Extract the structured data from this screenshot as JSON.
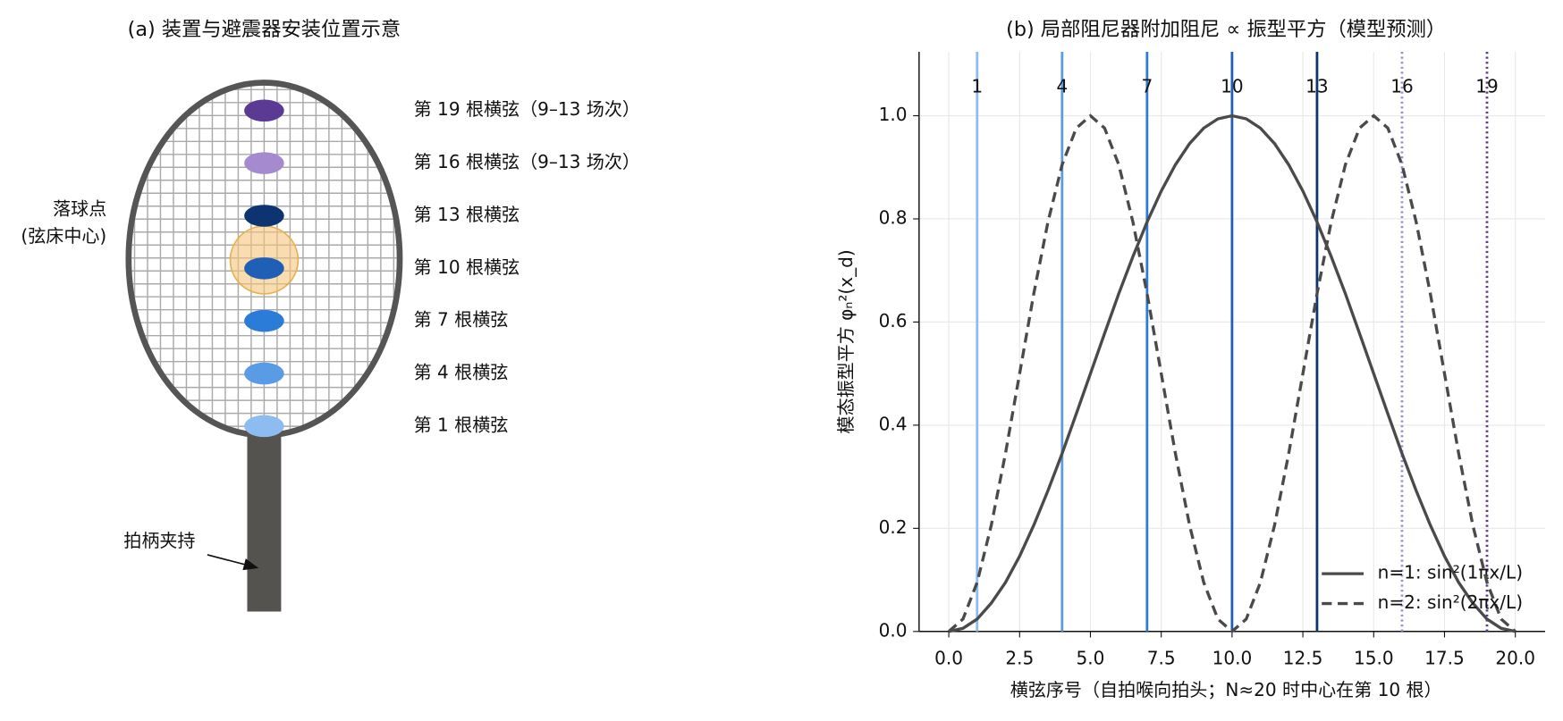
{
  "panel_a": {
    "title": "(a) 装置与避震器安装位置示意",
    "strings": [
      {
        "label": "第 19 根横弦（9–13 场次）",
        "color": "#5b3a94"
      },
      {
        "label": "第 16 根横弦（9–13 场次）",
        "color": "#a58ad0"
      },
      {
        "label": "第 13 根横弦",
        "color": "#0d3470"
      },
      {
        "label": "第 10 根横弦",
        "color": "#1f5fb5"
      },
      {
        "label": "第 7 根横弦",
        "color": "#2b7bd9"
      },
      {
        "label": "第 4 根横弦",
        "color": "#5a9be6"
      },
      {
        "label": "第 1 根横弦",
        "color": "#8cbcf0"
      }
    ],
    "impact_label": [
      "落球点",
      "(弦床中心)"
    ],
    "impact_color": "#f5c57a",
    "clamp_label": "拍柄夹持"
  },
  "chart_data": {
    "type": "line",
    "title": "(b) 局部阻尼器附加阻尼 ∝ 振型平方（模型预测）",
    "xlabel": "横弦序号（自拍喉向拍头；N≈20 时中心在第 10 根）",
    "ylabel": "模态振型平方 φₙ²(x_d)",
    "x": [
      0,
      0.5,
      1,
      1.5,
      2,
      2.5,
      3,
      3.5,
      4,
      4.5,
      5,
      5.5,
      6,
      6.5,
      7,
      7.5,
      8,
      8.5,
      9,
      9.5,
      10,
      10.5,
      11,
      11.5,
      12,
      12.5,
      13,
      13.5,
      14,
      14.5,
      15,
      15.5,
      16,
      16.5,
      17,
      17.5,
      18,
      18.5,
      19,
      19.5,
      20
    ],
    "series": [
      {
        "name": "n=1: sin²(1πx/L)",
        "color": "#4a4a4a",
        "linestyle": "solid",
        "values": [
          0,
          0.006,
          0.024,
          0.055,
          0.095,
          0.146,
          0.206,
          0.273,
          0.345,
          0.422,
          0.5,
          0.578,
          0.655,
          0.727,
          0.794,
          0.854,
          0.905,
          0.946,
          0.976,
          0.994,
          1,
          0.994,
          0.976,
          0.946,
          0.905,
          0.854,
          0.794,
          0.727,
          0.655,
          0.578,
          0.5,
          0.422,
          0.345,
          0.273,
          0.206,
          0.146,
          0.095,
          0.055,
          0.024,
          0.006,
          0
        ]
      },
      {
        "name": "n=2: sin²(2πx/L)",
        "color": "#4a4a4a",
        "linestyle": "dashed",
        "values": [
          0,
          0.024,
          0.095,
          0.206,
          0.345,
          0.5,
          0.655,
          0.794,
          0.905,
          0.976,
          1,
          0.976,
          0.905,
          0.794,
          0.655,
          0.5,
          0.345,
          0.206,
          0.095,
          0.024,
          0,
          0.024,
          0.095,
          0.206,
          0.345,
          0.5,
          0.655,
          0.794,
          0.905,
          0.976,
          1,
          0.976,
          0.905,
          0.794,
          0.655,
          0.5,
          0.345,
          0.206,
          0.095,
          0.024,
          0
        ]
      }
    ],
    "dampers": {
      "positions": [
        1,
        4,
        7,
        10,
        13,
        16,
        19
      ],
      "colors": [
        "#8cbcf0",
        "#5a9be6",
        "#2b7bd9",
        "#1f5fb5",
        "#0d3470",
        "#a58ad0",
        "#5b3a94"
      ],
      "linestyles": [
        "solid",
        "solid",
        "solid",
        "solid",
        "solid",
        "dotted",
        "dotted"
      ]
    },
    "xlim": [
      -1.05,
      21.05
    ],
    "ylim": [
      0,
      1.124
    ],
    "xticks": [
      {
        "value": 0,
        "label": "0.0"
      },
      {
        "value": 2.5,
        "label": "2.5"
      },
      {
        "value": 5,
        "label": "5.0"
      },
      {
        "value": 7.5,
        "label": "7.5"
      },
      {
        "value": 10,
        "label": "10.0"
      },
      {
        "value": 12.5,
        "label": "12.5"
      },
      {
        "value": 15,
        "label": "15.0"
      },
      {
        "value": 17.5,
        "label": "17.5"
      },
      {
        "value": 20,
        "label": "20.0"
      }
    ],
    "yticks": [
      {
        "value": 0,
        "label": "0.0"
      },
      {
        "value": 0.2,
        "label": "0.2"
      },
      {
        "value": 0.4,
        "label": "0.4"
      },
      {
        "value": 0.6,
        "label": "0.6"
      },
      {
        "value": 0.8,
        "label": "0.8"
      },
      {
        "value": 1,
        "label": "1.0"
      }
    ],
    "grid": true,
    "legend": "lower right"
  }
}
